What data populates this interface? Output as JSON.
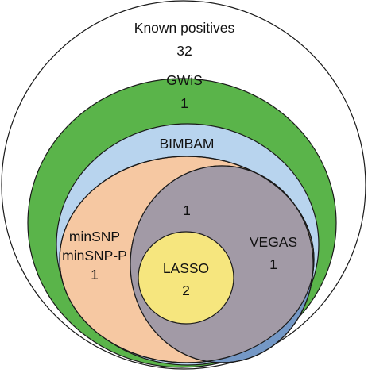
{
  "sets": {
    "known_positives": {
      "name": "Known positives",
      "count": "32",
      "color": "#ffffff"
    },
    "gwis": {
      "name": "GWiS",
      "count": "1",
      "color": "#5ab44a"
    },
    "bimbam": {
      "name": "BIMBAM",
      "count": "",
      "color": "#b8d4ee"
    },
    "minsnp": {
      "name": "minSNP",
      "name2": "minSNP-P",
      "count": "1",
      "color": "#f6c8a2"
    },
    "vegas": {
      "name": "VEGAS",
      "count": "1",
      "color": "#7498c6"
    },
    "intersection": {
      "count": "1",
      "color": "#a29aa6"
    },
    "lasso": {
      "name": "LASSO",
      "count": "2",
      "color": "#f6e67e"
    }
  }
}
